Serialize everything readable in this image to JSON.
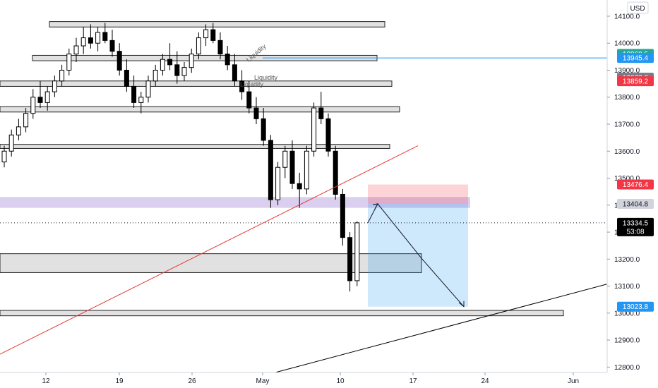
{
  "chart_data": {
    "type": "candlestick",
    "currency": "USD",
    "y_ticks": [
      12800,
      12900,
      13000,
      13100,
      13200,
      13300,
      13400,
      13500,
      13600,
      13700,
      13800,
      13900,
      14000,
      14100
    ],
    "y_tick_labels": [
      "12800.0",
      "12900.0",
      "13000.0",
      "13100.0",
      "13200.0",
      "13300.0",
      "13400.0",
      "13500.0",
      "13600.0",
      "13700.0",
      "13800.0",
      "13900.0",
      "14000.0",
      "14100.0"
    ],
    "ylim": [
      12780,
      14160
    ],
    "x_tick_labels": [
      "12",
      "19",
      "26",
      "May",
      "10",
      "17",
      "24",
      "Jun"
    ],
    "grid": false,
    "price_badges": [
      {
        "value": 13960.5,
        "label": "13960.5",
        "color": "#26a69a"
      },
      {
        "value": 13945.4,
        "label": "13945.4",
        "color": "#2196f3"
      },
      {
        "value": 13872.2,
        "label": "13872.2",
        "color": "#787b86"
      },
      {
        "value": 13859.2,
        "label": "13859.2",
        "color": "#f23645"
      },
      {
        "value": 13476.4,
        "label": "13476.4",
        "color": "#f23645"
      },
      {
        "value": 13404.8,
        "label": "13404.8",
        "color": "#d1d4dc"
      },
      {
        "value": 13334.5,
        "label": "13334.5",
        "sublabel": "53:08",
        "color": "#000000"
      },
      {
        "value": 13023.8,
        "label": "13023.8",
        "color": "#2196f3"
      }
    ],
    "annotations": [
      "Liquidity",
      "Liquidity",
      "Liquidity"
    ],
    "series": [
      {
        "values": [
          [
            13560,
            13620,
            13540,
            13600
          ],
          [
            13600,
            13680,
            13580,
            13660
          ],
          [
            13660,
            13720,
            13640,
            13690
          ],
          [
            13690,
            13760,
            13670,
            13740
          ],
          [
            13740,
            13830,
            13720,
            13800
          ],
          [
            13800,
            13860,
            13760,
            13780
          ],
          [
            13780,
            13840,
            13750,
            13820
          ],
          [
            13820,
            13880,
            13800,
            13860
          ],
          [
            13860,
            13920,
            13840,
            13900
          ],
          [
            13900,
            13980,
            13880,
            13960
          ],
          [
            13960,
            14020,
            13930,
            13990
          ],
          [
            13990,
            14060,
            13960,
            14020
          ],
          [
            14020,
            14070,
            13980,
            14000
          ],
          [
            14000,
            14060,
            13970,
            14040
          ],
          [
            14040,
            14075,
            14000,
            14010
          ],
          [
            14010,
            14050,
            13950,
            13970
          ],
          [
            13970,
            14000,
            13880,
            13900
          ],
          [
            13900,
            13940,
            13820,
            13840
          ],
          [
            13840,
            13880,
            13760,
            13780
          ],
          [
            13780,
            13820,
            13740,
            13800
          ],
          [
            13800,
            13880,
            13780,
            13860
          ],
          [
            13860,
            13920,
            13840,
            13900
          ],
          [
            13900,
            13960,
            13880,
            13940
          ],
          [
            13940,
            14000,
            13900,
            13920
          ],
          [
            13920,
            13970,
            13850,
            13880
          ],
          [
            13880,
            13930,
            13860,
            13910
          ],
          [
            13910,
            13980,
            13890,
            13960
          ],
          [
            13960,
            14040,
            13940,
            14020
          ],
          [
            14020,
            14070,
            13990,
            14050
          ],
          [
            14050,
            14075,
            14000,
            14010
          ],
          [
            14010,
            14040,
            13940,
            13960
          ],
          [
            13960,
            13990,
            13900,
            13920
          ],
          [
            13920,
            13960,
            13840,
            13860
          ],
          [
            13860,
            13900,
            13790,
            13820
          ],
          [
            13820,
            13860,
            13740,
            13760
          ],
          [
            13760,
            13800,
            13700,
            13720
          ],
          [
            13720,
            13760,
            13620,
            13640
          ],
          [
            13640,
            13660,
            13390,
            13420
          ],
          [
            13420,
            13560,
            13400,
            13540
          ],
          [
            13540,
            13620,
            13500,
            13600
          ],
          [
            13600,
            13640,
            13460,
            13480
          ],
          [
            13480,
            13520,
            13390,
            13460
          ],
          [
            13460,
            13620,
            13440,
            13600
          ],
          [
            13600,
            13780,
            13580,
            13760
          ],
          [
            13760,
            13820,
            13700,
            13720
          ],
          [
            13720,
            13740,
            13580,
            13600
          ],
          [
            13600,
            13620,
            13420,
            13440
          ],
          [
            13440,
            13460,
            13250,
            13280
          ],
          [
            13280,
            13300,
            13080,
            13120
          ],
          [
            13120,
            13340,
            13100,
            13334.5
          ]
        ]
      }
    ],
    "horizontal_zones": [
      {
        "from": 14060,
        "to": 14080
      },
      {
        "from": 13935,
        "to": 13955
      },
      {
        "from": 13840,
        "to": 13860
      },
      {
        "from": 13745,
        "to": 13765
      },
      {
        "from": 13610,
        "to": 13625
      },
      {
        "from": 13390,
        "to": 13430
      },
      {
        "from": 13150,
        "to": 13220
      },
      {
        "from": 12990,
        "to": 13010
      }
    ],
    "trendlines": [
      {
        "from": [
          0,
          12900
        ],
        "to": [
          60,
          13620
        ],
        "color": "#e53935"
      },
      {
        "from": [
          40,
          12780
        ],
        "to": [
          88,
          13120
        ],
        "color": "#000000"
      }
    ],
    "position": {
      "entry": 13404.8,
      "stop": 13476.4,
      "target": 13023.8,
      "path": [
        [
          13334.5
        ],
        [
          13404.8
        ],
        [
          13023.8
        ]
      ]
    }
  }
}
